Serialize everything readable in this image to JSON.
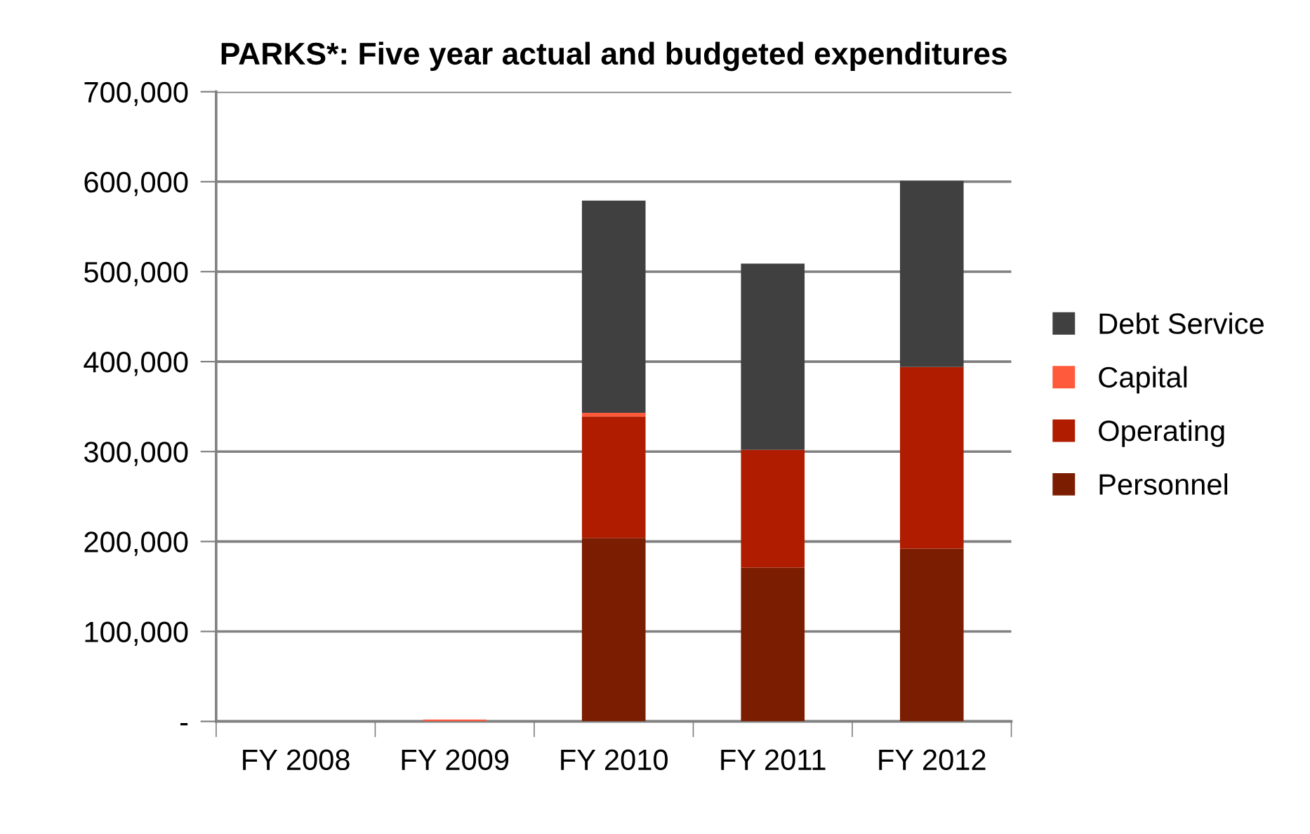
{
  "chart_data": {
    "type": "bar",
    "title": "PARKS*: Five year actual and budgeted expenditures",
    "stacked": true,
    "categories": [
      "FY 2008",
      "FY 2009",
      "FY 2010",
      "FY 2011",
      "FY 2012"
    ],
    "series": [
      {
        "name": "Personnel",
        "color": "#7b1d00",
        "values": [
          0,
          0,
          204000,
          171000,
          192000
        ]
      },
      {
        "name": "Operating",
        "color": "#b01c00",
        "values": [
          0,
          0,
          135000,
          131000,
          202000
        ]
      },
      {
        "name": "Capital",
        "color": "#ff5a3c",
        "values": [
          0,
          2000,
          4000,
          0,
          0
        ]
      },
      {
        "name": "Debt Service",
        "color": "#404040",
        "values": [
          0,
          0,
          236000,
          207000,
          207000
        ]
      }
    ],
    "ylim": [
      0,
      700000
    ],
    "yticks": [
      {
        "value": 0,
        "label": "-"
      },
      {
        "value": 100000,
        "label": "100,000"
      },
      {
        "value": 200000,
        "label": "200,000"
      },
      {
        "value": 300000,
        "label": "300,000"
      },
      {
        "value": 400000,
        "label": "400,000"
      },
      {
        "value": 500000,
        "label": "500,000"
      },
      {
        "value": 600000,
        "label": "600,000"
      },
      {
        "value": 700000,
        "label": "700,000"
      }
    ],
    "grid": "y",
    "legend": "right"
  }
}
